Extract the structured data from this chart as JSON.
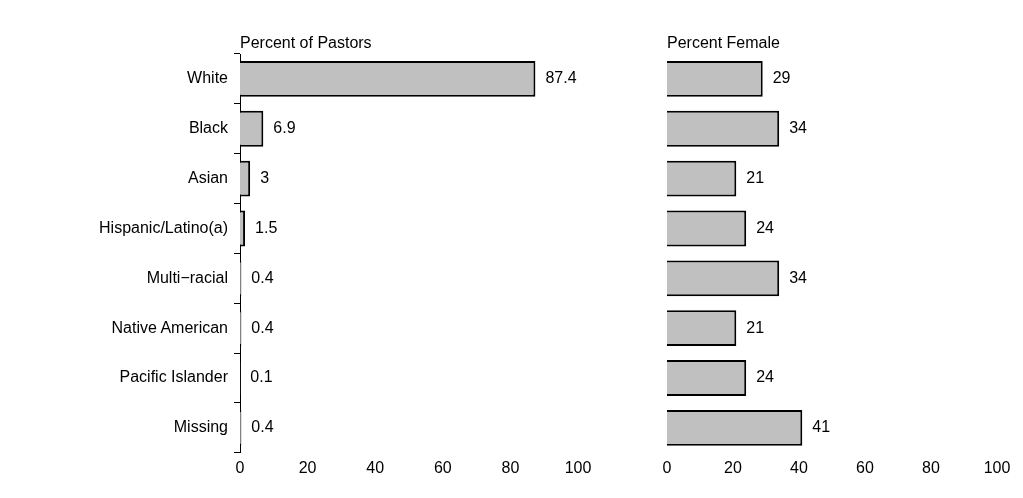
{
  "chart_data": [
    {
      "type": "bar",
      "orientation": "horizontal",
      "title": "Percent of Pastors",
      "categories": [
        "White",
        "Black",
        "Asian",
        "Hispanic/Latino(a)",
        "Multi−racial",
        "Native American",
        "Pacific Islander",
        "Missing"
      ],
      "values": [
        87.4,
        6.9,
        3,
        1.5,
        0.4,
        0.4,
        0.1,
        0.4
      ],
      "color": "#c0c0c0",
      "xlim": [
        0,
        100
      ],
      "xticks": [
        0,
        20,
        40,
        60,
        80,
        100
      ],
      "data_labels": true,
      "grid": false
    },
    {
      "type": "bar",
      "orientation": "horizontal",
      "title": "Percent Female",
      "categories": [
        null,
        null,
        null,
        null,
        null,
        null,
        null,
        null
      ],
      "values": [
        29,
        34,
        21,
        24,
        34,
        21,
        24,
        41
      ],
      "color": "#c0c0c0",
      "xlim": [
        0,
        100
      ],
      "xticks": [
        0,
        20,
        40,
        60,
        80,
        100
      ],
      "data_labels": true,
      "grid": false,
      "tick_labels": "x"
    }
  ]
}
